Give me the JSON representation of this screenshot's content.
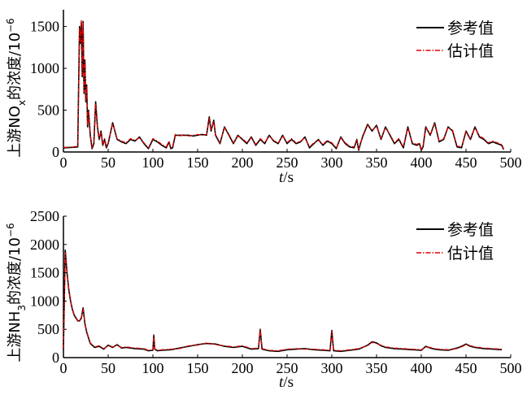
{
  "chart_data": [
    {
      "type": "line",
      "ylabel_main": "上游NO",
      "ylabel_sub": "x",
      "ylabel_rest": "的浓度/10",
      "ylabel_sup": "−6",
      "xlabel_italic": "t",
      "xlabel_unit": "/s",
      "xlim": [
        0,
        500
      ],
      "ylim": [
        0,
        1700
      ],
      "xticks": [
        "0",
        "50",
        "100",
        "150",
        "200",
        "250",
        "300",
        "350",
        "400",
        "450",
        "500"
      ],
      "yticks": [
        "0",
        "500",
        "1000",
        "1500"
      ],
      "ytick_values": [
        0,
        500,
        1000,
        1500
      ],
      "legend_position": "top-right",
      "series": [
        {
          "name": "参考值",
          "color": "#000000",
          "style": "solid",
          "x": [
            0,
            10,
            16,
            17,
            18,
            19,
            20,
            21,
            22,
            23,
            24,
            25,
            26,
            27,
            28,
            30,
            32,
            34,
            36,
            38,
            40,
            42,
            44,
            46,
            48,
            50,
            55,
            60,
            65,
            70,
            75,
            80,
            85,
            90,
            95,
            100,
            105,
            110,
            115,
            118,
            120,
            122,
            125,
            130,
            135,
            140,
            145,
            150,
            155,
            160,
            163,
            165,
            168,
            170,
            175,
            180,
            185,
            190,
            195,
            200,
            205,
            210,
            215,
            220,
            225,
            230,
            235,
            240,
            245,
            250,
            255,
            260,
            265,
            270,
            275,
            280,
            285,
            290,
            295,
            300,
            305,
            310,
            315,
            320,
            325,
            328,
            330,
            332,
            335,
            340,
            345,
            350,
            355,
            360,
            365,
            370,
            375,
            380,
            385,
            390,
            395,
            398,
            400,
            402,
            405,
            410,
            415,
            420,
            425,
            430,
            435,
            440,
            445,
            450,
            455,
            460,
            465,
            470,
            475,
            480,
            485,
            490,
            492
          ],
          "y": [
            50,
            55,
            60,
            800,
            1500,
            1300,
            1550,
            900,
            1560,
            700,
            1100,
            600,
            800,
            300,
            500,
            200,
            40,
            100,
            600,
            300,
            150,
            250,
            80,
            150,
            50,
            100,
            350,
            150,
            120,
            100,
            150,
            130,
            180,
            100,
            40,
            150,
            120,
            80,
            50,
            120,
            40,
            50,
            200,
            200,
            200,
            200,
            190,
            200,
            210,
            200,
            420,
            250,
            380,
            200,
            100,
            300,
            200,
            100,
            200,
            150,
            100,
            180,
            80,
            150,
            100,
            200,
            130,
            100,
            200,
            100,
            150,
            100,
            120,
            180,
            50,
            100,
            150,
            80,
            130,
            100,
            40,
            180,
            100,
            60,
            50,
            150,
            20,
            100,
            200,
            330,
            250,
            320,
            150,
            300,
            200,
            100,
            150,
            50,
            300,
            100,
            80,
            100,
            20,
            60,
            300,
            200,
            350,
            120,
            150,
            300,
            250,
            60,
            50,
            250,
            150,
            300,
            180,
            150,
            100,
            120,
            100,
            80,
            30
          ]
        },
        {
          "name": "估计值",
          "color": "#e00000",
          "style": "dashdot",
          "x": [
            0,
            10,
            16,
            17,
            18,
            19,
            20,
            21,
            22,
            23,
            24,
            25,
            26,
            27,
            28,
            30,
            32,
            34,
            36,
            38,
            40,
            42,
            44,
            46,
            48,
            50,
            55,
            60,
            65,
            70,
            75,
            80,
            85,
            90,
            95,
            100,
            105,
            110,
            115,
            118,
            120,
            122,
            125,
            130,
            135,
            140,
            145,
            150,
            155,
            160,
            163,
            165,
            168,
            170,
            175,
            180,
            185,
            190,
            195,
            200,
            205,
            210,
            215,
            220,
            225,
            230,
            235,
            240,
            245,
            250,
            255,
            260,
            265,
            270,
            275,
            280,
            285,
            290,
            295,
            300,
            305,
            310,
            315,
            320,
            325,
            328,
            330,
            332,
            335,
            340,
            345,
            350,
            355,
            360,
            365,
            370,
            375,
            380,
            385,
            390,
            395,
            398,
            400,
            402,
            405,
            410,
            415,
            420,
            425,
            430,
            435,
            440,
            445,
            450,
            455,
            460,
            465,
            470,
            475,
            480,
            485,
            490,
            492
          ],
          "y": [
            55,
            58,
            70,
            780,
            1480,
            1320,
            1580,
            920,
            1540,
            720,
            1080,
            620,
            790,
            320,
            480,
            210,
            50,
            110,
            580,
            310,
            160,
            240,
            90,
            160,
            60,
            110,
            340,
            160,
            130,
            110,
            160,
            140,
            170,
            110,
            50,
            160,
            130,
            90,
            60,
            130,
            50,
            60,
            210,
            190,
            210,
            190,
            200,
            210,
            200,
            210,
            400,
            260,
            370,
            210,
            110,
            290,
            210,
            110,
            190,
            160,
            110,
            170,
            90,
            160,
            110,
            190,
            140,
            110,
            190,
            110,
            160,
            110,
            130,
            170,
            60,
            110,
            140,
            90,
            140,
            110,
            50,
            170,
            110,
            70,
            60,
            140,
            30,
            110,
            190,
            320,
            260,
            310,
            160,
            290,
            210,
            110,
            160,
            60,
            290,
            110,
            90,
            110,
            30,
            70,
            290,
            210,
            340,
            130,
            160,
            290,
            260,
            70,
            60,
            240,
            160,
            290,
            190,
            160,
            110,
            130,
            110,
            90,
            40
          ]
        }
      ]
    },
    {
      "type": "line",
      "ylabel_main": "上游NH",
      "ylabel_sub": "3",
      "ylabel_rest": "的浓度/10",
      "ylabel_sup": "−6",
      "xlabel_italic": "t",
      "xlabel_unit": "/s",
      "xlim": [
        0,
        500
      ],
      "ylim": [
        0,
        2500
      ],
      "xticks": [
        "0",
        "50",
        "100",
        "150",
        "200",
        "250",
        "300",
        "350",
        "400",
        "450",
        "500"
      ],
      "yticks": [
        "0",
        "500",
        "1000",
        "1500",
        "2000",
        "2500"
      ],
      "ytick_values": [
        0,
        500,
        1000,
        1500,
        2000,
        2500
      ],
      "legend_position": "top-right",
      "series": [
        {
          "name": "参考值",
          "color": "#000000",
          "style": "solid",
          "x": [
            0,
            2,
            4,
            6,
            8,
            10,
            12,
            14,
            16,
            18,
            20,
            22,
            24,
            26,
            28,
            30,
            35,
            40,
            45,
            50,
            55,
            60,
            65,
            70,
            80,
            90,
            95,
            100,
            101,
            102,
            105,
            110,
            120,
            130,
            140,
            150,
            160,
            170,
            180,
            190,
            200,
            210,
            218,
            220,
            222,
            230,
            240,
            250,
            260,
            270,
            280,
            290,
            298,
            300,
            302,
            310,
            320,
            330,
            340,
            345,
            350,
            355,
            360,
            370,
            380,
            390,
            400,
            405,
            410,
            415,
            420,
            430,
            440,
            445,
            450,
            455,
            460,
            470,
            480,
            490
          ],
          "y": [
            150,
            1900,
            1500,
            1200,
            1000,
            850,
            750,
            700,
            650,
            650,
            700,
            880,
            600,
            450,
            350,
            250,
            180,
            200,
            150,
            220,
            180,
            230,
            170,
            180,
            160,
            150,
            120,
            130,
            400,
            150,
            120,
            130,
            140,
            170,
            200,
            230,
            250,
            240,
            200,
            180,
            200,
            150,
            160,
            500,
            150,
            120,
            110,
            140,
            150,
            160,
            140,
            130,
            120,
            480,
            120,
            110,
            130,
            150,
            220,
            280,
            260,
            210,
            180,
            160,
            150,
            140,
            130,
            200,
            170,
            150,
            140,
            130,
            170,
            200,
            240,
            200,
            180,
            160,
            150,
            140
          ]
        },
        {
          "name": "估计值",
          "color": "#e00000",
          "style": "dashdot",
          "x": [
            0,
            2,
            4,
            6,
            8,
            10,
            12,
            14,
            16,
            18,
            20,
            22,
            24,
            26,
            28,
            30,
            35,
            40,
            45,
            50,
            55,
            60,
            65,
            70,
            80,
            90,
            95,
            100,
            101,
            102,
            105,
            110,
            120,
            130,
            140,
            150,
            160,
            170,
            180,
            190,
            200,
            210,
            218,
            220,
            222,
            230,
            240,
            250,
            260,
            270,
            280,
            290,
            298,
            300,
            302,
            310,
            320,
            330,
            340,
            345,
            350,
            355,
            360,
            370,
            380,
            390,
            400,
            405,
            410,
            415,
            420,
            430,
            440,
            445,
            450,
            455,
            460,
            470,
            480,
            490
          ],
          "y": [
            160,
            1850,
            1480,
            1220,
            1010,
            860,
            760,
            710,
            660,
            640,
            710,
            860,
            610,
            460,
            360,
            260,
            190,
            210,
            160,
            210,
            190,
            220,
            180,
            190,
            170,
            160,
            130,
            140,
            390,
            160,
            130,
            140,
            150,
            160,
            210,
            220,
            260,
            230,
            210,
            190,
            210,
            160,
            170,
            490,
            160,
            130,
            120,
            150,
            160,
            150,
            150,
            140,
            130,
            470,
            130,
            120,
            140,
            160,
            210,
            270,
            250,
            220,
            190,
            170,
            160,
            150,
            140,
            190,
            180,
            160,
            150,
            140,
            160,
            190,
            230,
            210,
            190,
            170,
            160,
            150
          ]
        }
      ]
    }
  ]
}
